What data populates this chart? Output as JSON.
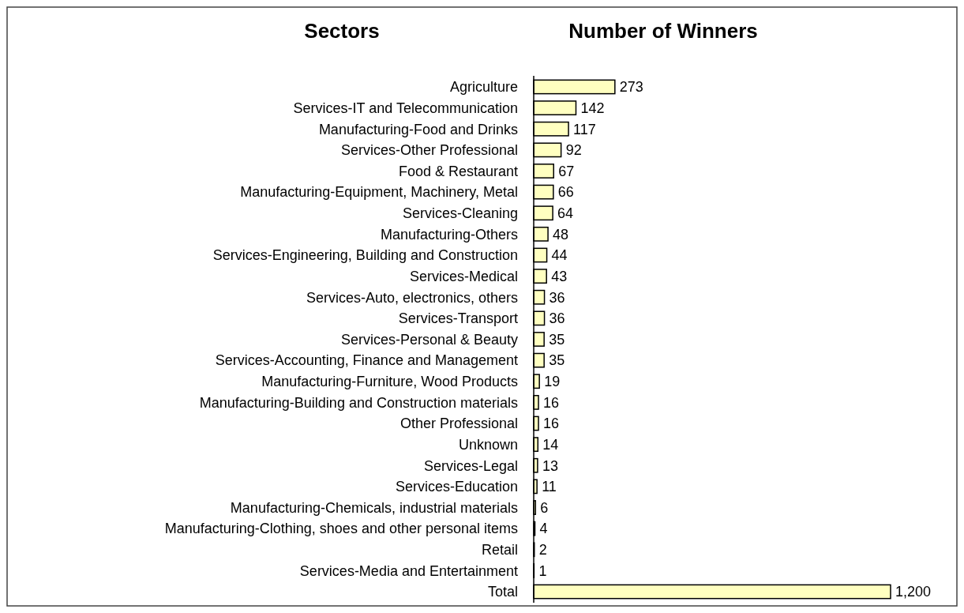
{
  "chart_data": {
    "type": "bar",
    "orientation": "horizontal",
    "ylabel": "Sectors",
    "xlabel": "Number of Winners",
    "categories": [
      "Agriculture",
      "Services-IT and Telecommunication",
      "Manufacturing-Food and Drinks",
      "Services-Other Professional",
      "Food & Restaurant",
      "Manufacturing-Equipment, Machinery, Metal",
      "Services-Cleaning",
      "Manufacturing-Others",
      "Services-Engineering, Building and Construction",
      "Services-Medical",
      "Services-Auto, electronics, others",
      "Services-Transport",
      "Services-Personal & Beauty",
      "Services-Accounting, Finance and Management",
      "Manufacturing-Furniture, Wood Products",
      "Manufacturing-Building and Construction materials",
      "Other Professional",
      "Unknown",
      "Services-Legal",
      "Services-Education",
      "Manufacturing-Chemicals, industrial materials",
      "Manufacturing-Clothing, shoes and other personal items",
      "Retail",
      "Services-Media and Entertainment",
      "Total"
    ],
    "values": [
      273,
      142,
      117,
      92,
      67,
      66,
      64,
      48,
      44,
      43,
      36,
      36,
      35,
      35,
      19,
      16,
      16,
      14,
      13,
      11,
      6,
      4,
      2,
      1,
      1200
    ],
    "value_labels": [
      "273",
      "142",
      "117",
      "92",
      "67",
      "66",
      "64",
      "48",
      "44",
      "43",
      "36",
      "36",
      "35",
      "35",
      "19",
      "16",
      "16",
      "14",
      "13",
      "11",
      "6",
      "4",
      "2",
      "1",
      "1,200"
    ],
    "color": "#ffffc0"
  }
}
